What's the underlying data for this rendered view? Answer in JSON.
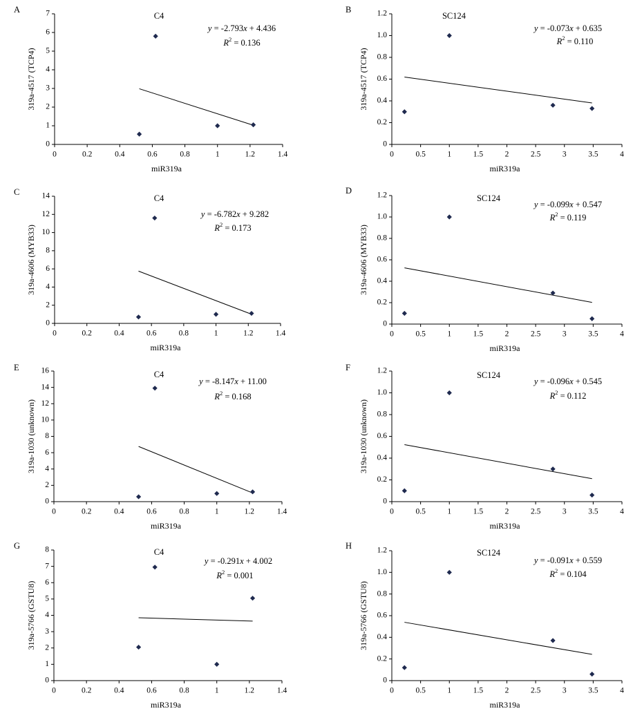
{
  "chart_data": [
    {
      "panel": "A",
      "type": "scatter",
      "title": "C4",
      "xlabel": "miR319a",
      "ylabel": "319a-4517 (TCP4)",
      "xlim": [
        0,
        1.4
      ],
      "ylim": [
        0,
        7
      ],
      "xticks": [
        "0",
        "0.2",
        "0.4",
        "0.6",
        "0.8",
        "1",
        "1.2",
        "1.4"
      ],
      "yticks": [
        "0",
        "1",
        "2",
        "3",
        "4",
        "5",
        "6",
        "7"
      ],
      "points": [
        [
          0.52,
          0.55
        ],
        [
          0.62,
          5.8
        ],
        [
          1.0,
          1.0
        ],
        [
          1.22,
          1.05
        ]
      ],
      "trendline": {
        "x": [
          0.52,
          1.22
        ],
        "slope": -2.793,
        "intercept": 4.436
      },
      "equation_label": "y = -2.793x + 4.436",
      "r2_label": "R2 = 0.136"
    },
    {
      "panel": "B",
      "type": "scatter",
      "title": "SC124",
      "xlabel": "miR319a",
      "ylabel": "319a-4517 (TCP4)",
      "xlim": [
        0,
        4
      ],
      "ylim": [
        0,
        1.2
      ],
      "xticks": [
        "0",
        "0.5",
        "1",
        "1.5",
        "2",
        "2.5",
        "3",
        "3.5",
        "4"
      ],
      "yticks": [
        "0",
        "0.2",
        "0.4",
        "0.6",
        "0.8",
        "1.0",
        "1.2"
      ],
      "points": [
        [
          0.22,
          0.3
        ],
        [
          1.0,
          1.0
        ],
        [
          2.8,
          0.36
        ],
        [
          3.48,
          0.33
        ]
      ],
      "trendline": {
        "x": [
          0.22,
          3.48
        ],
        "slope": -0.073,
        "intercept": 0.635
      },
      "equation_label": "y = -0.073x + 0.635",
      "r2_label": "R2 = 0.110"
    },
    {
      "panel": "C",
      "type": "scatter",
      "title": "C4",
      "xlabel": "miR319a",
      "ylabel": "319a-4606 (MYB33)",
      "xlim": [
        0,
        1.4
      ],
      "ylim": [
        0,
        14
      ],
      "xticks": [
        "0",
        "0.2",
        "0.4",
        "0.6",
        "0.8",
        "1",
        "1.2",
        "1.4"
      ],
      "yticks": [
        "0",
        "2",
        "4",
        "6",
        "8",
        "10",
        "12",
        "14"
      ],
      "points": [
        [
          0.52,
          0.7
        ],
        [
          0.62,
          11.6
        ],
        [
          1.0,
          1.0
        ],
        [
          1.22,
          1.1
        ]
      ],
      "trendline": {
        "x": [
          0.52,
          1.22
        ],
        "slope": -6.782,
        "intercept": 9.282
      },
      "equation_label": "y = -6.782x + 9.282",
      "r2_label": "R2 = 0.173"
    },
    {
      "panel": "D",
      "type": "scatter",
      "title": "SC124",
      "xlabel": "miR319a",
      "ylabel": "319a-4606 (MYB33)",
      "xlim": [
        0,
        4
      ],
      "ylim": [
        0,
        1.2
      ],
      "xticks": [
        "0",
        "0.5",
        "1",
        "1.5",
        "2",
        "2.5",
        "3",
        "3.5",
        "4"
      ],
      "yticks": [
        "0",
        "0.2",
        "0.4",
        "0.6",
        "0.8",
        "1.0",
        "1.2"
      ],
      "points": [
        [
          0.22,
          0.1
        ],
        [
          1.0,
          1.0
        ],
        [
          2.8,
          0.29
        ],
        [
          3.48,
          0.05
        ]
      ],
      "trendline": {
        "x": [
          0.22,
          3.48
        ],
        "slope": -0.099,
        "intercept": 0.547
      },
      "equation_label": "y = -0.099x + 0.547",
      "r2_label": "R2 = 0.119"
    },
    {
      "panel": "E",
      "type": "scatter",
      "title": "C4",
      "xlabel": "miR319a",
      "ylabel": "319a-1030 (unknown)",
      "xlim": [
        0,
        1.4
      ],
      "ylim": [
        0,
        16
      ],
      "xticks": [
        "0",
        "0.2",
        "0.4",
        "0.6",
        "0.8",
        "1",
        "1.2",
        "1.4"
      ],
      "yticks": [
        "0",
        "2",
        "4",
        "6",
        "8",
        "10",
        "12",
        "14",
        "16"
      ],
      "points": [
        [
          0.52,
          0.6
        ],
        [
          0.62,
          13.9
        ],
        [
          1.0,
          1.0
        ],
        [
          1.22,
          1.2
        ]
      ],
      "trendline": {
        "x": [
          0.52,
          1.22
        ],
        "slope": -8.147,
        "intercept": 11.0
      },
      "equation_label": "y = -8.147x + 11.00",
      "r2_label": "R2 = 0.168"
    },
    {
      "panel": "F",
      "type": "scatter",
      "title": "SC124",
      "xlabel": "miR319a",
      "ylabel": "319a-1030 (unknown)",
      "xlim": [
        0,
        4
      ],
      "ylim": [
        0,
        1.2
      ],
      "xticks": [
        "0",
        "0.5",
        "1",
        "1.5",
        "2",
        "2.5",
        "3",
        "3.5",
        "4"
      ],
      "yticks": [
        "0",
        "0.2",
        "0.4",
        "0.6",
        "0.8",
        "1.0",
        "1.2"
      ],
      "points": [
        [
          0.22,
          0.1
        ],
        [
          1.0,
          1.0
        ],
        [
          2.8,
          0.3
        ],
        [
          3.48,
          0.06
        ]
      ],
      "trendline": {
        "x": [
          0.22,
          3.48
        ],
        "slope": -0.096,
        "intercept": 0.545
      },
      "equation_label": "y = -0.096x + 0.545",
      "r2_label": "R2 = 0.112"
    },
    {
      "panel": "G",
      "type": "scatter",
      "title": "C4",
      "xlabel": "miR319a",
      "ylabel": "319a-5766 (GSTU8)",
      "xlim": [
        0,
        1.4
      ],
      "ylim": [
        0,
        8
      ],
      "xticks": [
        "0",
        "0.2",
        "0.4",
        "0.6",
        "0.8",
        "1",
        "1.2",
        "1.4"
      ],
      "yticks": [
        "0",
        "1",
        "2",
        "3",
        "4",
        "5",
        "6",
        "7",
        "8"
      ],
      "points": [
        [
          0.52,
          2.05
        ],
        [
          0.62,
          6.95
        ],
        [
          1.0,
          1.0
        ],
        [
          1.22,
          5.05
        ]
      ],
      "trendline": {
        "x": [
          0.52,
          1.22
        ],
        "slope": -0.291,
        "intercept": 4.002
      },
      "equation_label": "y = -0.291x + 4.002",
      "r2_label": "R2 = 0.001"
    },
    {
      "panel": "H",
      "type": "scatter",
      "title": "SC124",
      "xlabel": "miR319a",
      "ylabel": "319a-5766 (GSTU8)",
      "xlim": [
        0,
        4
      ],
      "ylim": [
        0,
        1.2
      ],
      "xticks": [
        "0",
        "0.5",
        "1",
        "1.5",
        "2",
        "2.5",
        "3",
        "3.5",
        "4"
      ],
      "yticks": [
        "0",
        "0.2",
        "0.4",
        "0.6",
        "0.8",
        "1.0",
        "1.2"
      ],
      "points": [
        [
          0.22,
          0.12
        ],
        [
          1.0,
          1.0
        ],
        [
          2.8,
          0.37
        ],
        [
          3.48,
          0.06
        ]
      ],
      "trendline": {
        "x": [
          0.22,
          3.48
        ],
        "slope": -0.091,
        "intercept": 0.559
      },
      "equation_label": "y = -0.091x + 0.559",
      "r2_label": "R2 = 0.104"
    }
  ],
  "colors": {
    "marker": "#1f2a4f",
    "line": "#000000",
    "axis": "#000000"
  }
}
